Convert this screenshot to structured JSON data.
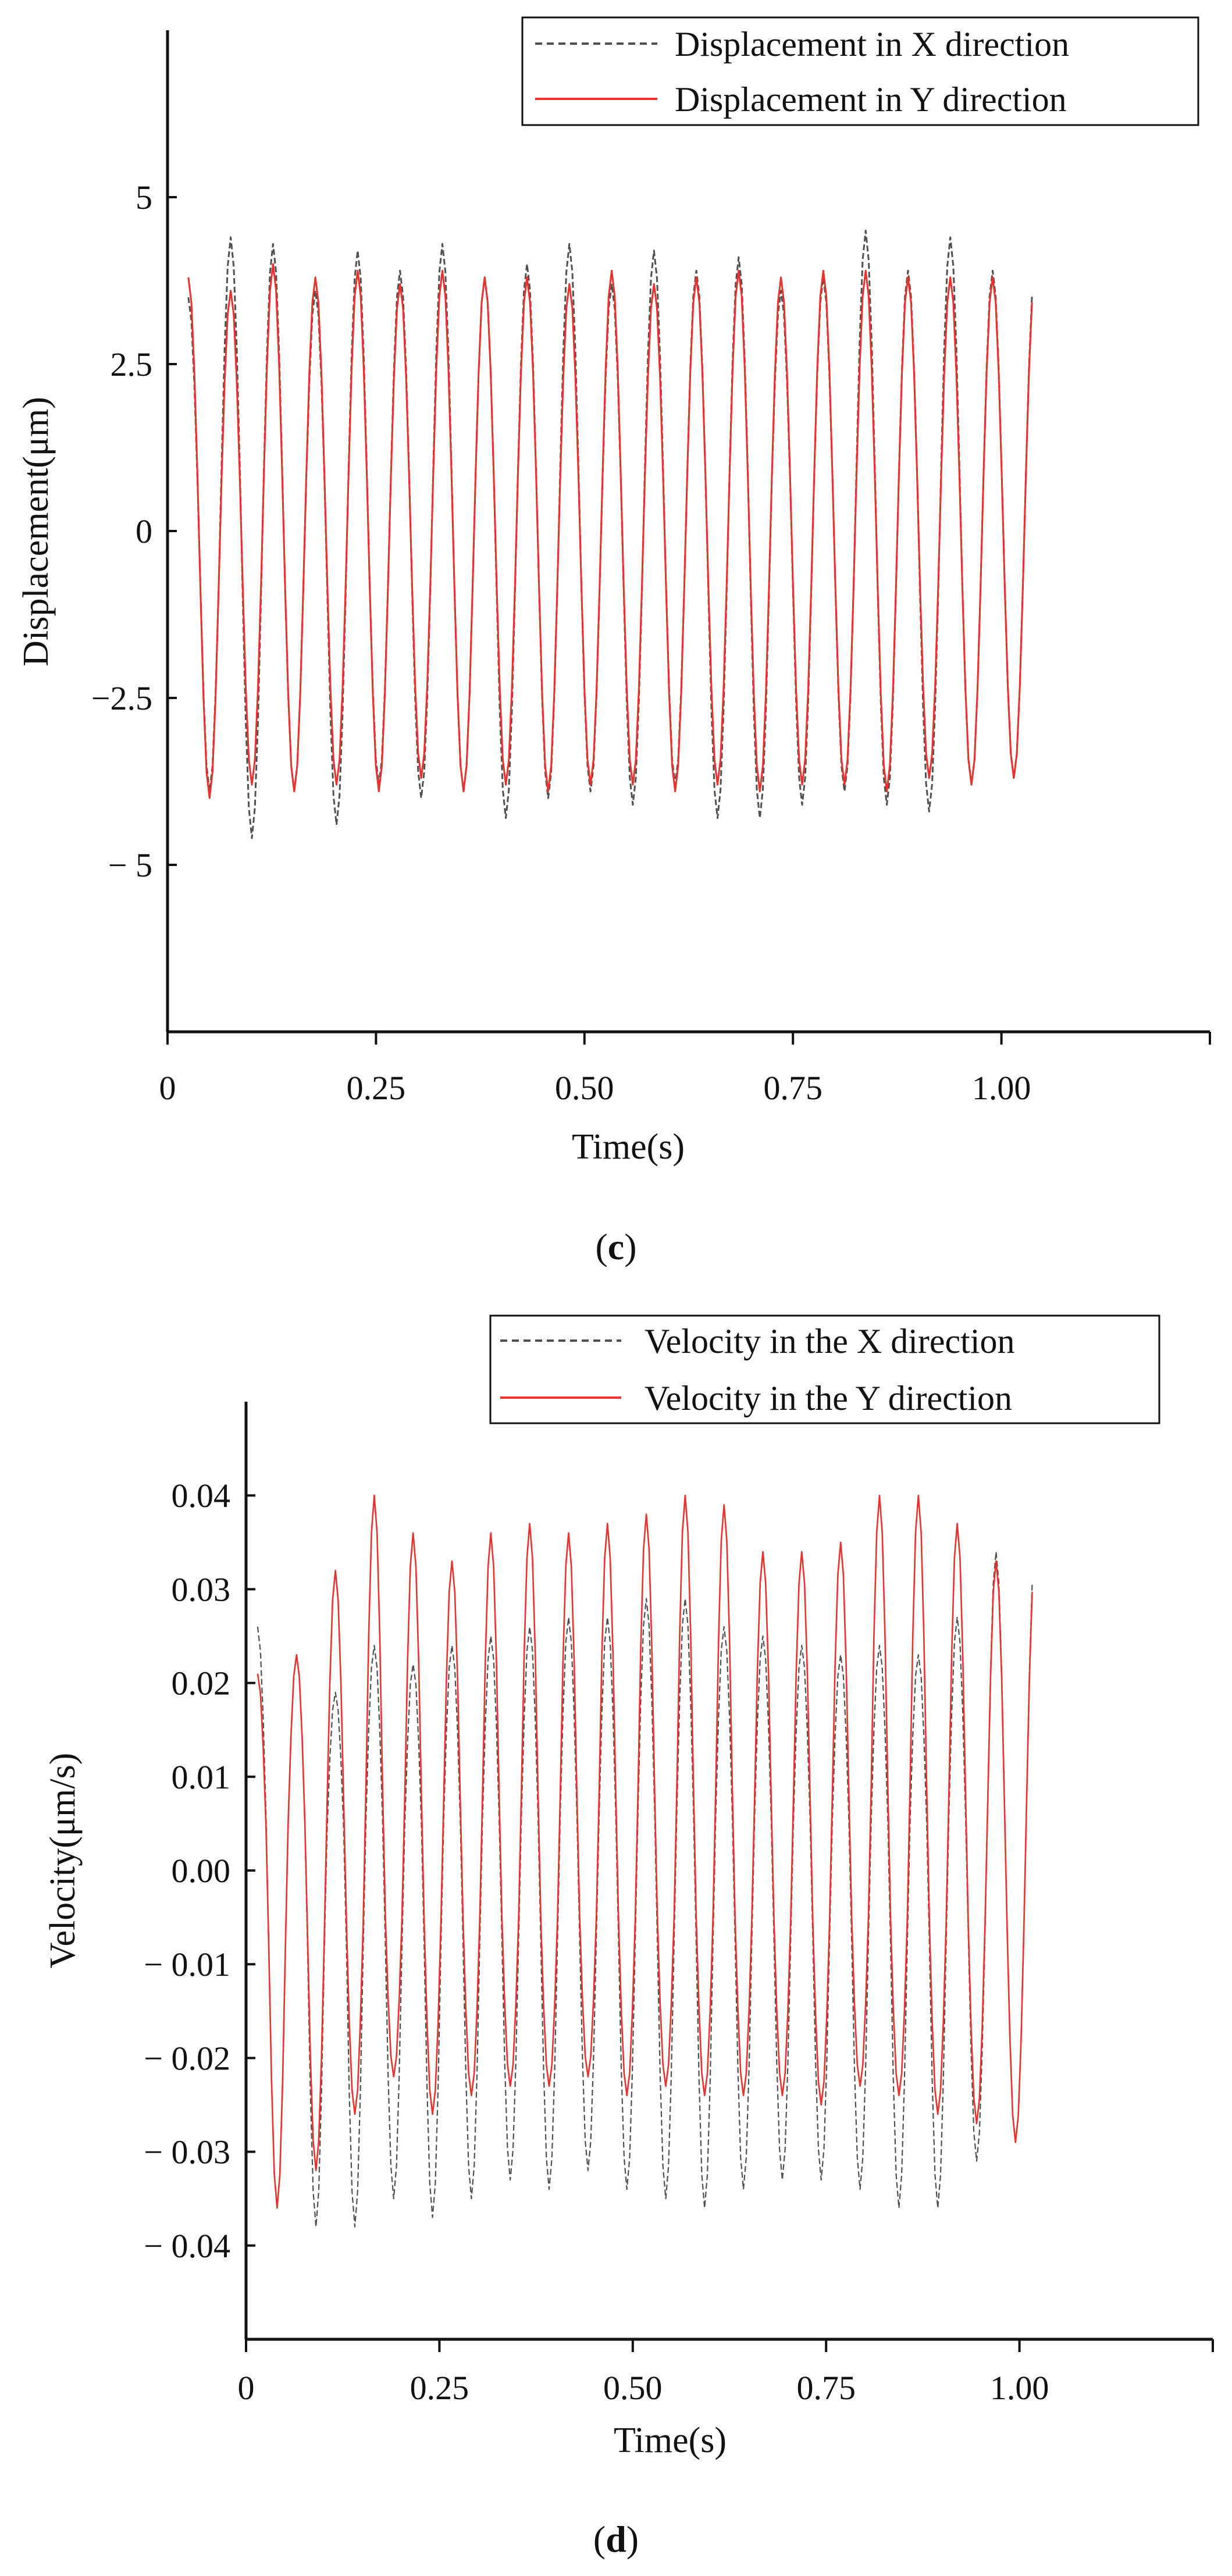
{
  "chart_data": [
    {
      "panel": "c",
      "type": "line",
      "title": "",
      "xlabel": "Time(s)",
      "ylabel": "Displacement(μm)",
      "xlim": [
        0,
        1.25
      ],
      "ylim": [
        -7.5,
        7.5
      ],
      "xticks": [
        0,
        0.25,
        0.5,
        0.75,
        1.0
      ],
      "xtick_labels": [
        "0",
        "0.25",
        "0.50",
        "0.75",
        "1.00"
      ],
      "yticks": [
        5,
        2.5,
        0,
        -2.5,
        -5
      ],
      "ytick_labels": [
        "5",
        "2.5",
        "0",
        "−2.5",
        "− 5"
      ],
      "legend": "top-right",
      "t_start": 0.025,
      "t_end": 1.04,
      "frequency_hz": 19.7,
      "series": [
        {
          "name": "Displacement in X direction",
          "color": "#505050",
          "style": "dashed",
          "peaks": [
            3.5,
            4.4,
            4.3,
            3.6,
            4.2,
            3.9,
            4.3,
            3.8,
            4.0,
            4.3,
            3.7,
            4.2,
            3.9,
            4.1,
            3.6,
            3.8,
            4.5,
            3.9,
            4.4,
            3.9
          ],
          "troughs": [
            -3.9,
            -4.6,
            -3.9,
            -4.4,
            -3.8,
            -4.0,
            -3.9,
            -4.3,
            -4.0,
            -3.9,
            -4.1,
            -3.8,
            -4.3,
            -4.3,
            -4.1,
            -3.9,
            -4.1,
            -4.2,
            -3.8,
            -3.7
          ]
        },
        {
          "name": "Displacement in Y direction",
          "color": "#e8322d",
          "style": "solid",
          "peaks": [
            3.8,
            3.6,
            4.0,
            3.8,
            3.9,
            3.7,
            3.9,
            3.8,
            3.8,
            3.7,
            3.9,
            3.7,
            3.8,
            3.9,
            3.8,
            3.9,
            3.9,
            3.8,
            3.8,
            3.8
          ],
          "troughs": [
            -4.0,
            -3.8,
            -3.9,
            -3.8,
            -3.9,
            -3.7,
            -3.9,
            -3.8,
            -3.9,
            -3.8,
            -3.8,
            -3.9,
            -3.8,
            -3.9,
            -3.8,
            -3.8,
            -3.9,
            -3.7,
            -3.8,
            -3.7
          ]
        }
      ]
    },
    {
      "panel": "d",
      "type": "line",
      "title": "",
      "xlabel": "Time(s)",
      "ylabel": "Velocity(μm/s)",
      "xlim": [
        0,
        1.25
      ],
      "ylim": [
        -0.05,
        0.05
      ],
      "xticks": [
        0,
        0.25,
        0.5,
        0.75,
        1.0
      ],
      "xtick_labels": [
        "0",
        "0.25",
        "0.50",
        "0.75",
        "1.00"
      ],
      "yticks": [
        0.04,
        0.03,
        0.02,
        0.01,
        0.0,
        -0.01,
        -0.02,
        -0.03,
        -0.04
      ],
      "ytick_labels": [
        "0.04",
        "0.03",
        "0.02",
        "0.01",
        "0.00",
        "− 0.01",
        "− 0.02",
        "− 0.03",
        "− 0.04"
      ],
      "legend": "top-right",
      "t_start": 0.015,
      "t_end": 1.02,
      "frequency_hz": 19.9,
      "series": [
        {
          "name": "Velocity in the X direction",
          "color": "#505050",
          "style": "dashed",
          "peaks": [
            0.026,
            0.023,
            0.019,
            0.024,
            0.022,
            0.024,
            0.025,
            0.026,
            0.027,
            0.027,
            0.029,
            0.029,
            0.026,
            0.025,
            0.024,
            0.023,
            0.024,
            0.023,
            0.027,
            0.034
          ],
          "troughs": [
            -0.036,
            -0.038,
            -0.038,
            -0.035,
            -0.037,
            -0.035,
            -0.033,
            -0.034,
            -0.032,
            -0.034,
            -0.035,
            -0.036,
            -0.034,
            -0.033,
            -0.033,
            -0.034,
            -0.036,
            -0.036,
            -0.031,
            -0.029
          ]
        },
        {
          "name": "Velocity in the Y direction",
          "color": "#e8322d",
          "style": "solid",
          "peaks": [
            0.021,
            0.023,
            0.032,
            0.04,
            0.036,
            0.033,
            0.036,
            0.037,
            0.036,
            0.037,
            0.038,
            0.04,
            0.039,
            0.034,
            0.034,
            0.035,
            0.04,
            0.04,
            0.037,
            0.033
          ],
          "troughs": [
            -0.036,
            -0.032,
            -0.026,
            -0.022,
            -0.026,
            -0.024,
            -0.023,
            -0.023,
            -0.022,
            -0.024,
            -0.023,
            -0.024,
            -0.024,
            -0.024,
            -0.025,
            -0.023,
            -0.024,
            -0.026,
            -0.027,
            -0.029
          ]
        }
      ]
    }
  ],
  "panel_labels": [
    "c",
    "d"
  ]
}
